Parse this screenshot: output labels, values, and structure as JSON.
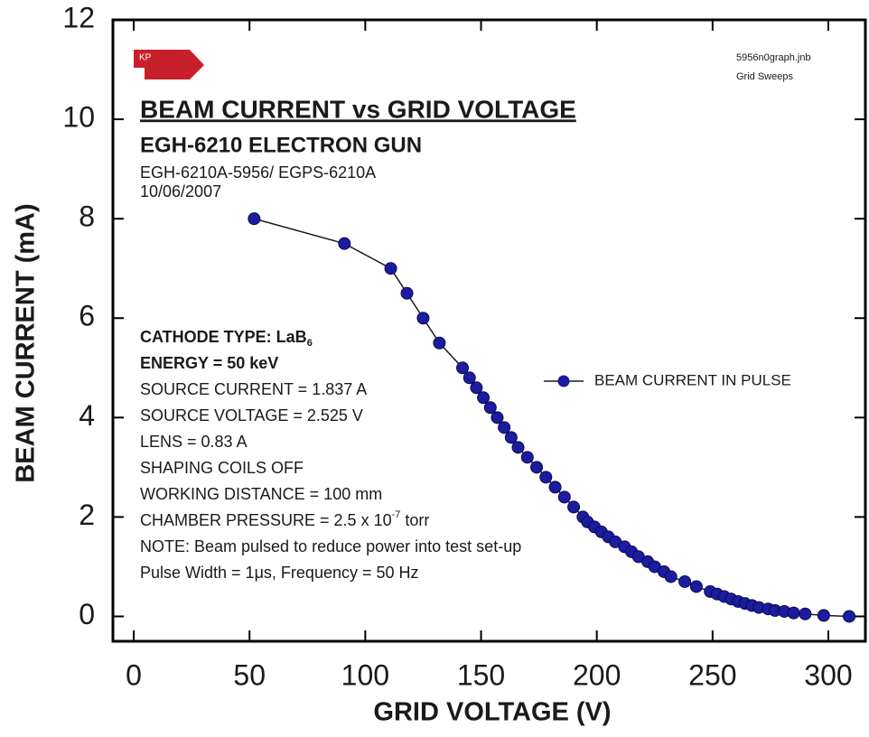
{
  "chart_data": {
    "type": "line",
    "title": "BEAM CURRENT vs GRID VOLTAGE",
    "subtitle": "EGH-6210 ELECTRON GUN",
    "notes": [
      "EGH-6210A-5956/ EGPS-6210A",
      "10/06/2007"
    ],
    "logo": "KP",
    "file_labels": [
      "5956n0graph.jnb",
      "Grid Sweeps"
    ],
    "annotations": [
      {
        "text": "CATHODE TYPE: LaB",
        "subscript": "6",
        "bold": true
      },
      {
        "text": "ENERGY = 50 keV",
        "bold": true
      },
      {
        "text": "SOURCE CURRENT = 1.837 A"
      },
      {
        "text": "SOURCE VOLTAGE = 2.525 V"
      },
      {
        "text": "LENS = 0.83 A"
      },
      {
        "text": "SHAPING COILS OFF"
      },
      {
        "text": "WORKING DISTANCE = 100 mm"
      },
      {
        "text": "CHAMBER PRESSURE = 2.5 x 10",
        "superscript": "-7",
        "after": " torr"
      },
      {
        "text": "NOTE: Beam pulsed to reduce power into test set-up"
      },
      {
        "text": "Pulse Width = 1μs, Frequency = 50 Hz"
      }
    ],
    "xlabel": "GRID VOLTAGE (V)",
    "ylabel": "BEAM CURRENT (mA)",
    "x": [
      52,
      91,
      111,
      118,
      125,
      132,
      142,
      145,
      148,
      151,
      154,
      157,
      160,
      163,
      166,
      170,
      174,
      178,
      182,
      186,
      190,
      194,
      196,
      199,
      202,
      205,
      208,
      212,
      215,
      218,
      222,
      225,
      229,
      232,
      238,
      243,
      249,
      252,
      255,
      258,
      261,
      264,
      267,
      270,
      274,
      277,
      281,
      285,
      290,
      298,
      309
    ],
    "series": [
      {
        "name": "BEAM CURRENT IN PULSE",
        "color": "#1a1a1a",
        "marker_color": "#1c1ca0",
        "values": [
          8,
          7.5,
          7,
          6.5,
          6,
          5.5,
          5,
          4.8,
          4.6,
          4.4,
          4.2,
          4,
          3.8,
          3.6,
          3.4,
          3.2,
          3,
          2.8,
          2.6,
          2.4,
          2.2,
          2,
          1.9,
          1.8,
          1.7,
          1.6,
          1.5,
          1.4,
          1.3,
          1.2,
          1.1,
          1,
          0.9,
          0.8,
          0.7,
          0.6,
          0.5,
          0.45,
          0.4,
          0.35,
          0.3,
          0.26,
          0.22,
          0.18,
          0.15,
          0.12,
          0.1,
          0.07,
          0.05,
          0.02,
          0
        ]
      }
    ],
    "xlim": [
      -9,
      316
    ],
    "ylim": [
      -0.5,
      12
    ],
    "xticks": [
      0,
      50,
      100,
      150,
      200,
      250,
      300
    ],
    "yticks": [
      0,
      2,
      4,
      6,
      8,
      10,
      12
    ],
    "legend": "right"
  }
}
